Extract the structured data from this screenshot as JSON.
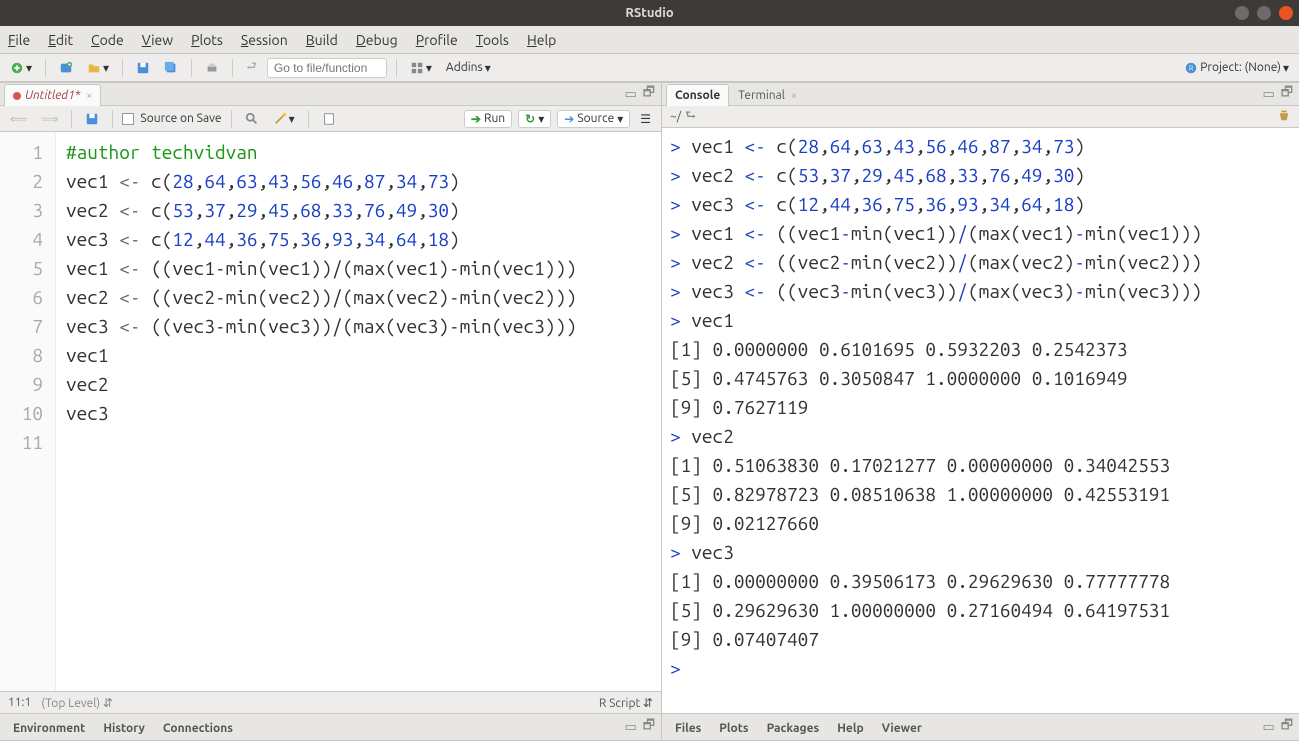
{
  "window": {
    "title": "RStudio"
  },
  "menu": [
    "File",
    "Edit",
    "Code",
    "View",
    "Plots",
    "Session",
    "Build",
    "Debug",
    "Profile",
    "Tools",
    "Help"
  ],
  "toolbar": {
    "goto_placeholder": "Go to file/function",
    "addins_label": "Addins",
    "project_label": "Project: (None)"
  },
  "source": {
    "tab_name": "Untitled1*",
    "source_on_save": "Source on Save",
    "run_label": "Run",
    "source_label": "Source",
    "lines": [
      {
        "n": 1,
        "html": "<span class='c-comment'>#author techvidvan</span>"
      },
      {
        "n": 2,
        "html": "vec1 <span class='c-op'>&lt;-</span> c(<span class='c-num'>28</span>,<span class='c-num'>64</span>,<span class='c-num'>63</span>,<span class='c-num'>43</span>,<span class='c-num'>56</span>,<span class='c-num'>46</span>,<span class='c-num'>87</span>,<span class='c-num'>34</span>,<span class='c-num'>73</span>)"
      },
      {
        "n": 3,
        "html": "vec2 <span class='c-op'>&lt;-</span> c(<span class='c-num'>53</span>,<span class='c-num'>37</span>,<span class='c-num'>29</span>,<span class='c-num'>45</span>,<span class='c-num'>68</span>,<span class='c-num'>33</span>,<span class='c-num'>76</span>,<span class='c-num'>49</span>,<span class='c-num'>30</span>)"
      },
      {
        "n": 4,
        "html": "vec3 <span class='c-op'>&lt;-</span> c(<span class='c-num'>12</span>,<span class='c-num'>44</span>,<span class='c-num'>36</span>,<span class='c-num'>75</span>,<span class='c-num'>36</span>,<span class='c-num'>93</span>,<span class='c-num'>34</span>,<span class='c-num'>64</span>,<span class='c-num'>18</span>)"
      },
      {
        "n": 5,
        "html": "vec1 <span class='c-op'>&lt;-</span> ((vec1-min(vec1))/(max(vec1)-min(vec1)))"
      },
      {
        "n": 6,
        "html": "vec2 <span class='c-op'>&lt;-</span> ((vec2-min(vec2))/(max(vec2)-min(vec2)))"
      },
      {
        "n": 7,
        "html": "vec3 <span class='c-op'>&lt;-</span> ((vec3-min(vec3))/(max(vec3)-min(vec3)))"
      },
      {
        "n": 8,
        "html": "vec1"
      },
      {
        "n": 9,
        "html": "vec2"
      },
      {
        "n": 10,
        "html": "vec3"
      },
      {
        "n": 11,
        "html": ""
      }
    ],
    "cursor_pos": "11:1",
    "scope": "(Top Level)",
    "file_type": "R Script"
  },
  "console": {
    "tab_console": "Console",
    "tab_terminal": "Terminal",
    "path": "~/",
    "lines": [
      "<span class='c-prompt'>&gt;</span> vec1 <span class='c-prompt'>&lt;-</span> c(<span class='c-prompt'>28</span>,<span class='c-prompt'>64</span>,<span class='c-prompt'>63</span>,<span class='c-prompt'>43</span>,<span class='c-prompt'>56</span>,<span class='c-prompt'>46</span>,<span class='c-prompt'>87</span>,<span class='c-prompt'>34</span>,<span class='c-prompt'>73</span>)",
      "<span class='c-prompt'>&gt;</span> vec2 <span class='c-prompt'>&lt;-</span> c(<span class='c-prompt'>53</span>,<span class='c-prompt'>37</span>,<span class='c-prompt'>29</span>,<span class='c-prompt'>45</span>,<span class='c-prompt'>68</span>,<span class='c-prompt'>33</span>,<span class='c-prompt'>76</span>,<span class='c-prompt'>49</span>,<span class='c-prompt'>30</span>)",
      "<span class='c-prompt'>&gt;</span> vec3 <span class='c-prompt'>&lt;-</span> c(<span class='c-prompt'>12</span>,<span class='c-prompt'>44</span>,<span class='c-prompt'>36</span>,<span class='c-prompt'>75</span>,<span class='c-prompt'>36</span>,<span class='c-prompt'>93</span>,<span class='c-prompt'>34</span>,<span class='c-prompt'>64</span>,<span class='c-prompt'>18</span>)",
      "<span class='c-prompt'>&gt;</span> vec1 <span class='c-prompt'>&lt;-</span> ((vec1<span class='c-prompt'>-</span>min(vec1))<span class='c-prompt'>/</span>(max(vec1)<span class='c-prompt'>-</span>min(vec1)))",
      "<span class='c-prompt'>&gt;</span> vec2 <span class='c-prompt'>&lt;-</span> ((vec2<span class='c-prompt'>-</span>min(vec2))<span class='c-prompt'>/</span>(max(vec2)<span class='c-prompt'>-</span>min(vec2)))",
      "<span class='c-prompt'>&gt;</span> vec3 <span class='c-prompt'>&lt;-</span> ((vec3<span class='c-prompt'>-</span>min(vec3))<span class='c-prompt'>/</span>(max(vec3)<span class='c-prompt'>-</span>min(vec3)))",
      "<span class='c-prompt'>&gt;</span> vec1",
      "[1] 0.0000000 0.6101695 0.5932203 0.2542373",
      "[5] 0.4745763 0.3050847 1.0000000 0.1016949",
      "[9] 0.7627119",
      "<span class='c-prompt'>&gt;</span> vec2",
      "[1] 0.51063830 0.17021277 0.00000000 0.34042553",
      "[5] 0.82978723 0.08510638 1.00000000 0.42553191",
      "[9] 0.02127660",
      "<span class='c-prompt'>&gt;</span> vec3",
      "[1] 0.00000000 0.39506173 0.29629630 0.77777778",
      "[5] 0.29629630 1.00000000 0.27160494 0.64197531",
      "[9] 0.07407407",
      "<span class='c-prompt'>&gt;</span> "
    ]
  },
  "bottom_left_tabs": [
    "Environment",
    "History",
    "Connections"
  ],
  "bottom_right_tabs": [
    "Files",
    "Plots",
    "Packages",
    "Help",
    "Viewer"
  ],
  "colors": {
    "prompt": "#1a3fc7",
    "comment": "#199615",
    "bg": "#efedeb"
  }
}
